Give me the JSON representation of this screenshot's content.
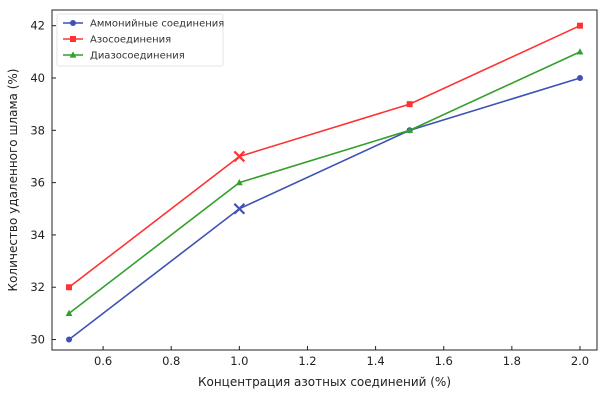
{
  "chart_data": {
    "type": "line",
    "xlabel": "Концентрация азотных соединений (%)",
    "ylabel": "Количество удаленного шлама (%)",
    "x": [
      0.5,
      1.0,
      1.5,
      2.0
    ],
    "xlim": [
      0.45,
      2.05
    ],
    "ylim": [
      29.6,
      42.6
    ],
    "xticks": [
      0.6,
      0.8,
      1.0,
      1.2,
      1.4,
      1.6,
      1.8,
      2.0
    ],
    "xtick_labels": [
      "0.6",
      "0.8",
      "1.0",
      "1.2",
      "1.4",
      "1.6",
      "1.8",
      "2.0"
    ],
    "yticks": [
      30,
      32,
      34,
      36,
      38,
      40,
      42
    ],
    "ytick_labels": [
      "30",
      "32",
      "34",
      "36",
      "38",
      "40",
      "42"
    ],
    "grid": false,
    "legend_position": "top-left",
    "series": [
      {
        "name": "Аммонийные соединения",
        "color": "#3f51b5",
        "values": [
          30,
          35,
          38,
          40
        ]
      },
      {
        "name": "Азосоединения",
        "color": "#ff3333",
        "values": [
          32,
          37,
          39,
          42
        ]
      },
      {
        "name": "Диазосоединения",
        "color": "#33a02c",
        "values": [
          31,
          36,
          38,
          41
        ]
      }
    ],
    "annotations": [
      {
        "type": "x-marker",
        "series": 0,
        "x": 1.0,
        "y": 35
      },
      {
        "type": "x-marker",
        "series": 1,
        "x": 1.0,
        "y": 37
      }
    ]
  }
}
